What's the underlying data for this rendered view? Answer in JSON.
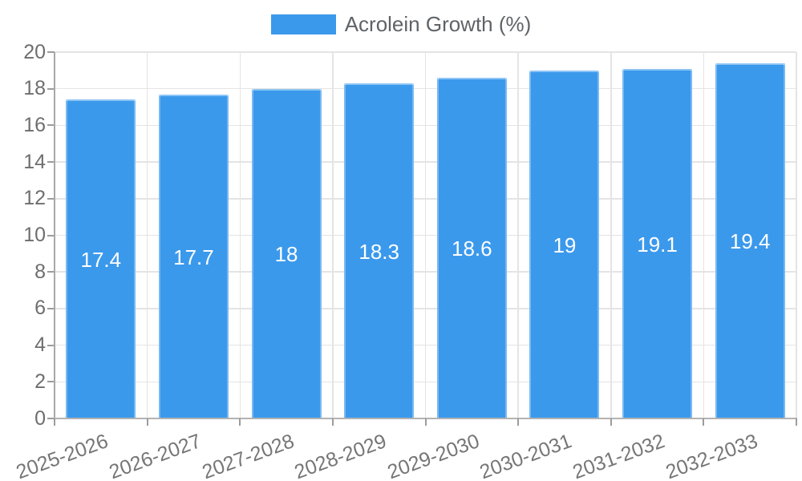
{
  "legend": {
    "items": [
      {
        "label": "Acrolein Growth (%)",
        "swatch_color": "#3b99ec"
      }
    ]
  },
  "chart_data": {
    "type": "bar",
    "title": "",
    "xlabel": "",
    "ylabel": "",
    "categories": [
      "2025-2026",
      "2026-2027",
      "2027-2028",
      "2028-2029",
      "2029-2030",
      "2030-2031",
      "2031-2032",
      "2032-2033"
    ],
    "series": [
      {
        "name": "Acrolein Growth (%)",
        "values": [
          17.4,
          17.7,
          18,
          18.3,
          18.6,
          19,
          19.1,
          19.4
        ],
        "value_labels": [
          "17.4",
          "17.7",
          "18",
          "18.3",
          "18.6",
          "19",
          "19.1",
          "19.4"
        ],
        "color": "#3b99ec"
      }
    ],
    "ylim": [
      0,
      20
    ],
    "yticks": [
      0,
      2,
      4,
      6,
      8,
      10,
      12,
      14,
      16,
      18,
      20
    ],
    "grid": true,
    "legend_position": "top-center",
    "x_label_rotation_deg": -20,
    "value_label_position": "middle-of-bar",
    "value_label_color": "#ffffff",
    "colors": {
      "bar": "#3b99ec",
      "grid_line": "#e4e4e4",
      "axis_line": "#b3b3b3",
      "tick_mark": "#9c9c9c",
      "y_axis_text": "#6e6e6e",
      "x_axis_text": "#767676",
      "legend_text": "#5f6368",
      "background": "#ffffff"
    }
  }
}
